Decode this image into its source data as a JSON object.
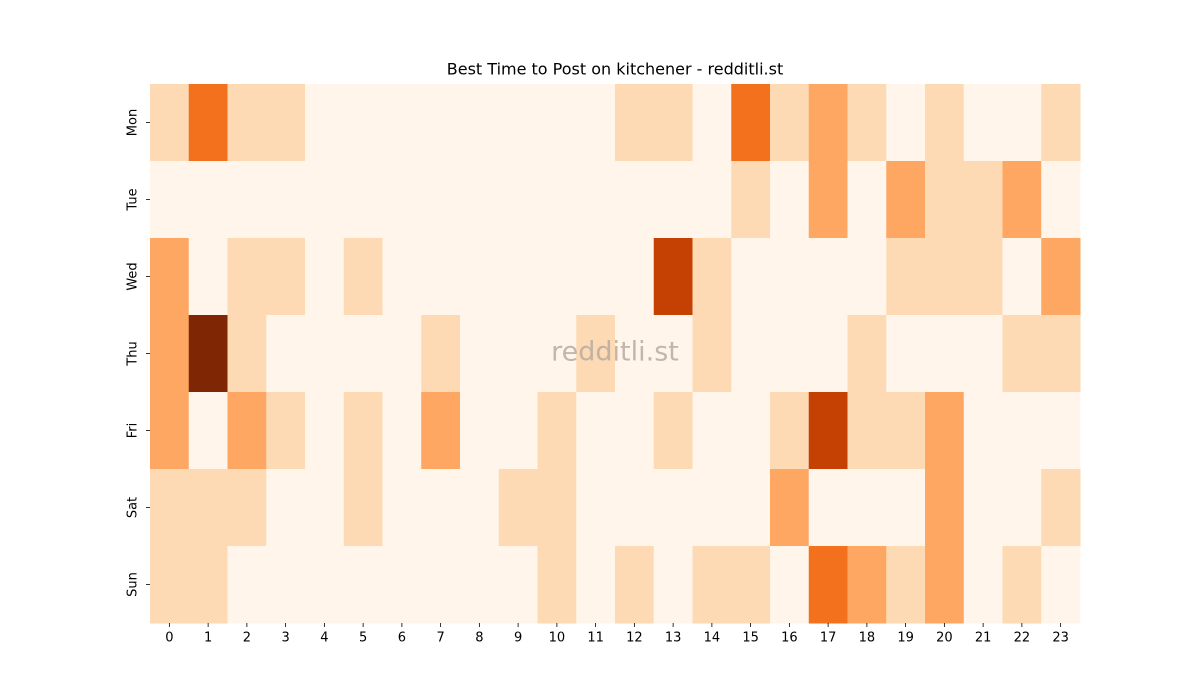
{
  "chart_data": {
    "type": "heatmap",
    "title": "Best Time to Post on kitchener - redditli.st",
    "watermark": "redditli.st",
    "x": [
      0,
      1,
      2,
      3,
      4,
      5,
      6,
      7,
      8,
      9,
      10,
      11,
      12,
      13,
      14,
      15,
      16,
      17,
      18,
      19,
      20,
      21,
      22,
      23
    ],
    "categories": [
      "Mon",
      "Tue",
      "Wed",
      "Thu",
      "Fri",
      "Sat",
      "Sun"
    ],
    "values": [
      [
        1,
        3,
        1,
        1,
        0,
        0,
        0,
        0,
        0,
        0,
        0,
        0,
        1,
        1,
        0,
        3,
        1,
        2,
        1,
        0,
        1,
        0,
        0,
        1
      ],
      [
        0,
        0,
        0,
        0,
        0,
        0,
        0,
        0,
        0,
        0,
        0,
        0,
        0,
        0,
        0,
        1,
        0,
        2,
        0,
        2,
        1,
        1,
        2,
        0
      ],
      [
        2,
        0,
        1,
        1,
        0,
        1,
        0,
        0,
        0,
        0,
        0,
        0,
        0,
        4,
        1,
        0,
        0,
        0,
        0,
        1,
        1,
        1,
        0,
        2
      ],
      [
        2,
        5,
        1,
        0,
        0,
        0,
        0,
        1,
        0,
        0,
        0,
        1,
        0,
        0,
        1,
        0,
        0,
        0,
        1,
        0,
        0,
        0,
        1,
        1
      ],
      [
        2,
        0,
        2,
        1,
        0,
        1,
        0,
        2,
        0,
        0,
        1,
        0,
        0,
        1,
        0,
        0,
        1,
        4,
        1,
        1,
        2,
        0,
        0,
        0
      ],
      [
        1,
        1,
        1,
        0,
        0,
        1,
        0,
        0,
        0,
        1,
        1,
        0,
        0,
        0,
        0,
        0,
        2,
        0,
        0,
        0,
        2,
        0,
        0,
        1
      ],
      [
        1,
        1,
        0,
        0,
        0,
        0,
        0,
        0,
        0,
        0,
        1,
        0,
        1,
        0,
        1,
        1,
        0,
        3,
        2,
        1,
        2,
        0,
        1,
        0
      ]
    ],
    "colormap": [
      "#fff5eb",
      "#fdd9b4",
      "#fda762",
      "#f3711c",
      "#c44103",
      "#7f2704"
    ]
  }
}
